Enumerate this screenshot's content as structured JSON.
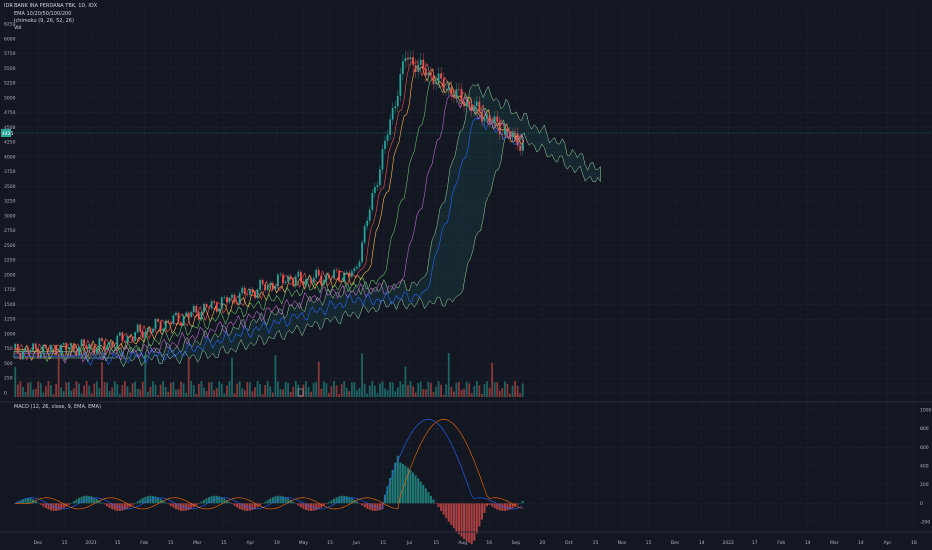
{
  "symbol_line": "BANK INA PERDANA TBK, 1D, IDX",
  "indicators": [
    "EMA 10/20/50/100/200",
    "Ichimoku (9, 26, 52, 26)",
    "Vol"
  ],
  "macd_label": "MACD (12, 26, close, 9, EMA, EMA)",
  "currency": "IDR",
  "last_price_label": "4425",
  "price_axis": [
    "6250",
    "6000",
    "5750",
    "5500",
    "5250",
    "5000",
    "4750",
    "4500",
    "4250",
    "4000",
    "3750",
    "3500",
    "3250",
    "3000",
    "2750",
    "2500",
    "2250",
    "2000",
    "1750",
    "1500",
    "1250",
    "1000",
    "750",
    "500",
    "250",
    "0"
  ],
  "macd_axis": [
    "1000",
    "800",
    "600",
    "400",
    "200",
    "0",
    "-200"
  ],
  "time_axis": [
    "Dec",
    "15",
    "2021",
    "15",
    "Feb",
    "15",
    "Mar",
    "15",
    "Apr",
    "19",
    "May",
    "15",
    "Jun",
    "15",
    "Jul",
    "15",
    "Aug",
    "16",
    "Sep",
    "20",
    "Oct",
    "15",
    "Nov",
    "15",
    "Dec",
    "14",
    "2022",
    "17",
    "Feb",
    "14",
    "Mar",
    "14",
    "Apr",
    "18"
  ],
  "colors": {
    "bg": "#131722",
    "up": "#26a69a",
    "down": "#ef5350",
    "grid": "#1e222d",
    "macd": "#2962ff",
    "signal": "#ff6d00"
  }
}
